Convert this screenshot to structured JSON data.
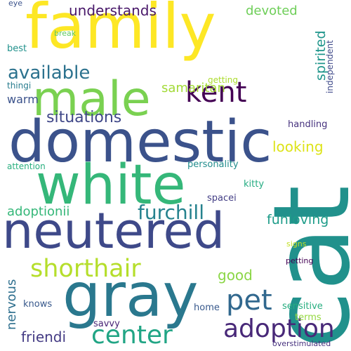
{
  "words": [
    {
      "text": "family",
      "color": "#fde725"
    },
    {
      "text": "cat",
      "color": "#21918c"
    },
    {
      "text": "domestic",
      "color": "#3b528b"
    },
    {
      "text": "male",
      "color": "#7ad151"
    },
    {
      "text": "white",
      "color": "#35b779"
    },
    {
      "text": "neutered",
      "color": "#3e4989"
    },
    {
      "text": "gray",
      "color": "#2a788e"
    },
    {
      "text": "adoption",
      "color": "#482878"
    },
    {
      "text": "shorthair",
      "color": "#b5de2b"
    },
    {
      "text": "center",
      "color": "#21a585"
    },
    {
      "text": "pet",
      "color": "#31688e"
    },
    {
      "text": "kent",
      "color": "#440154"
    },
    {
      "text": "available",
      "color": "#2c728e"
    },
    {
      "text": "furchill",
      "color": "#26828e"
    },
    {
      "text": "situations",
      "color": "#3f4788"
    },
    {
      "text": "understands",
      "color": "#481769"
    },
    {
      "text": "devoted",
      "color": "#6ece58"
    },
    {
      "text": "samaritan",
      "color": "#a2da37"
    },
    {
      "text": "spirited",
      "color": "#1f958b"
    },
    {
      "text": "looking",
      "color": "#dde318"
    },
    {
      "text": "funloving",
      "color": "#1e9c89"
    },
    {
      "text": "adoptionii",
      "color": "#35b779"
    },
    {
      "text": "nervous",
      "color": "#2e6f8e"
    },
    {
      "text": "good",
      "color": "#8bd646"
    },
    {
      "text": "friendi",
      "color": "#443b84"
    },
    {
      "text": "warm",
      "color": "#3b528b"
    },
    {
      "text": "independent",
      "color": "#3e4989"
    },
    {
      "text": "handling",
      "color": "#46327e"
    },
    {
      "text": "personality",
      "color": "#228d8d"
    },
    {
      "text": "kitty",
      "color": "#25ac82"
    },
    {
      "text": "spacei",
      "color": "#433e85"
    },
    {
      "text": "getting",
      "color": "#addc30"
    },
    {
      "text": "sensitive",
      "color": "#28ae80"
    },
    {
      "text": "terms",
      "color": "#95d840"
    },
    {
      "text": "savvy",
      "color": "#482475"
    },
    {
      "text": "home",
      "color": "#38598c"
    },
    {
      "text": "knows",
      "color": "#38598c"
    },
    {
      "text": "best",
      "color": "#21918c"
    },
    {
      "text": "break",
      "color": "#5ec962"
    },
    {
      "text": "thingi",
      "color": "#287c8e"
    },
    {
      "text": "attention",
      "color": "#29af7f"
    },
    {
      "text": "signs",
      "color": "#c2df23"
    },
    {
      "text": "petting",
      "color": "#440154"
    },
    {
      "text": "overstimulated",
      "color": "#46307e"
    },
    {
      "text": "eye",
      "color": "#3b528b"
    }
  ]
}
